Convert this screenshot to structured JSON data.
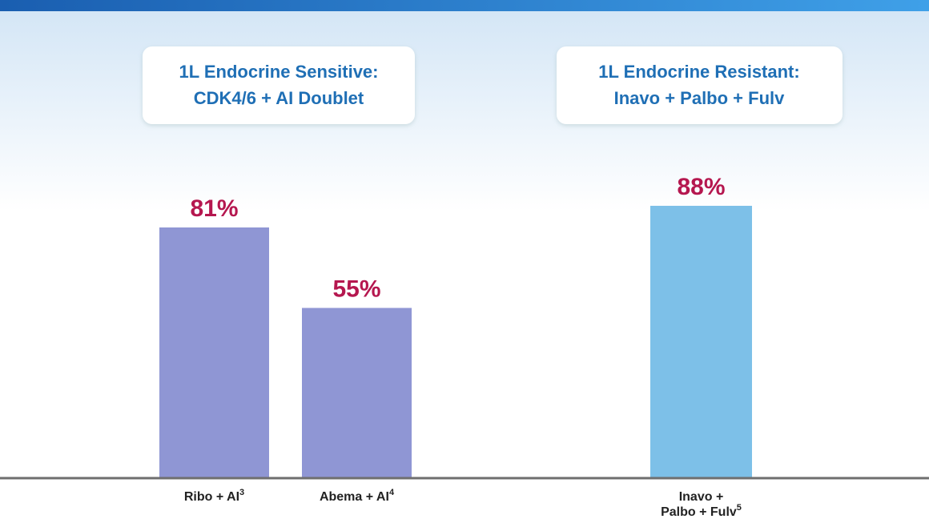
{
  "chart_data": {
    "type": "bar",
    "groups": [
      {
        "title": [
          "1L Endocrine Sensitive:",
          "CDK4/6 + AI Doublet"
        ]
      },
      {
        "title": [
          "1L Endocrine Resistant:",
          "Inavo + Palbo + Fulv"
        ]
      }
    ],
    "categories": [
      [
        "Ribo + AI"
      ],
      [
        "Abema + AI"
      ],
      [
        "Inavo +",
        "Palbo + Fulv"
      ]
    ],
    "refs": [
      "3",
      "4",
      "5"
    ],
    "values": [
      81,
      55,
      88
    ],
    "value_labels": [
      "81%",
      "55%",
      "88%"
    ],
    "colors": [
      "#8f96d4",
      "#8f96d4",
      "#7dc0e8"
    ],
    "value_label_color": "#b5174f"
  }
}
